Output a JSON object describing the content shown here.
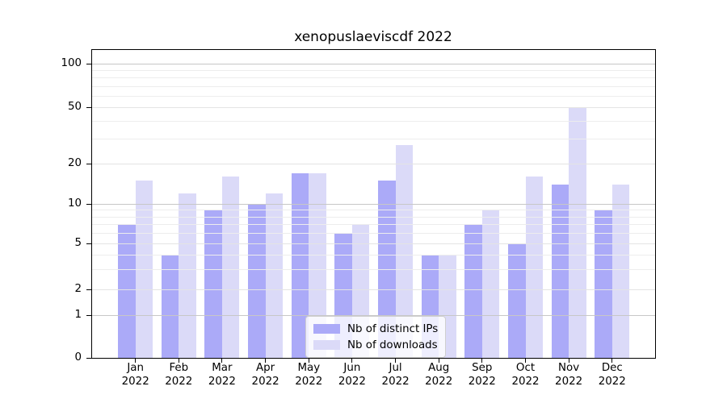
{
  "figure": {
    "title": "xenopuslaeviscdf 2022",
    "background_color": "#ffffff"
  },
  "chart_data": {
    "type": "bar",
    "title": "xenopuslaeviscdf 2022",
    "categories": [
      "Jan",
      "Feb",
      "Mar",
      "Apr",
      "May",
      "Jun",
      "Jul",
      "Aug",
      "Sep",
      "Oct",
      "Nov",
      "Dec"
    ],
    "x_axis": {
      "year_label": "2022"
    },
    "y_axis": {
      "scale": "symlog",
      "ticks": [
        100,
        50,
        20,
        10,
        5,
        2,
        1,
        0
      ],
      "ylim": [
        0,
        125
      ]
    },
    "series": [
      {
        "name": "Nb of distinct IPs",
        "color": "#abaaf8",
        "values": [
          7,
          4,
          9,
          10,
          17,
          6,
          15,
          4,
          7,
          5,
          14,
          9
        ]
      },
      {
        "name": "Nb of downloads",
        "color": "#dbdaf8",
        "values": [
          15,
          12,
          16,
          12,
          17,
          7,
          27,
          4,
          9,
          16,
          50,
          14
        ]
      }
    ],
    "legend": {
      "position": "lower center",
      "labels": [
        "Nb of distinct IPs",
        "Nb of downloads"
      ]
    },
    "grid": {
      "minor_values": [
        3,
        4,
        6,
        7,
        8,
        9,
        30,
        40,
        60,
        70,
        80,
        90
      ],
      "light_major_values": [
        2,
        5,
        20,
        50
      ],
      "dark_major_values": [
        1,
        10,
        100
      ],
      "minor_color": "#ededed",
      "light_major_color": "#e4e4e4",
      "dark_major_color": "#c7c7c7"
    }
  }
}
